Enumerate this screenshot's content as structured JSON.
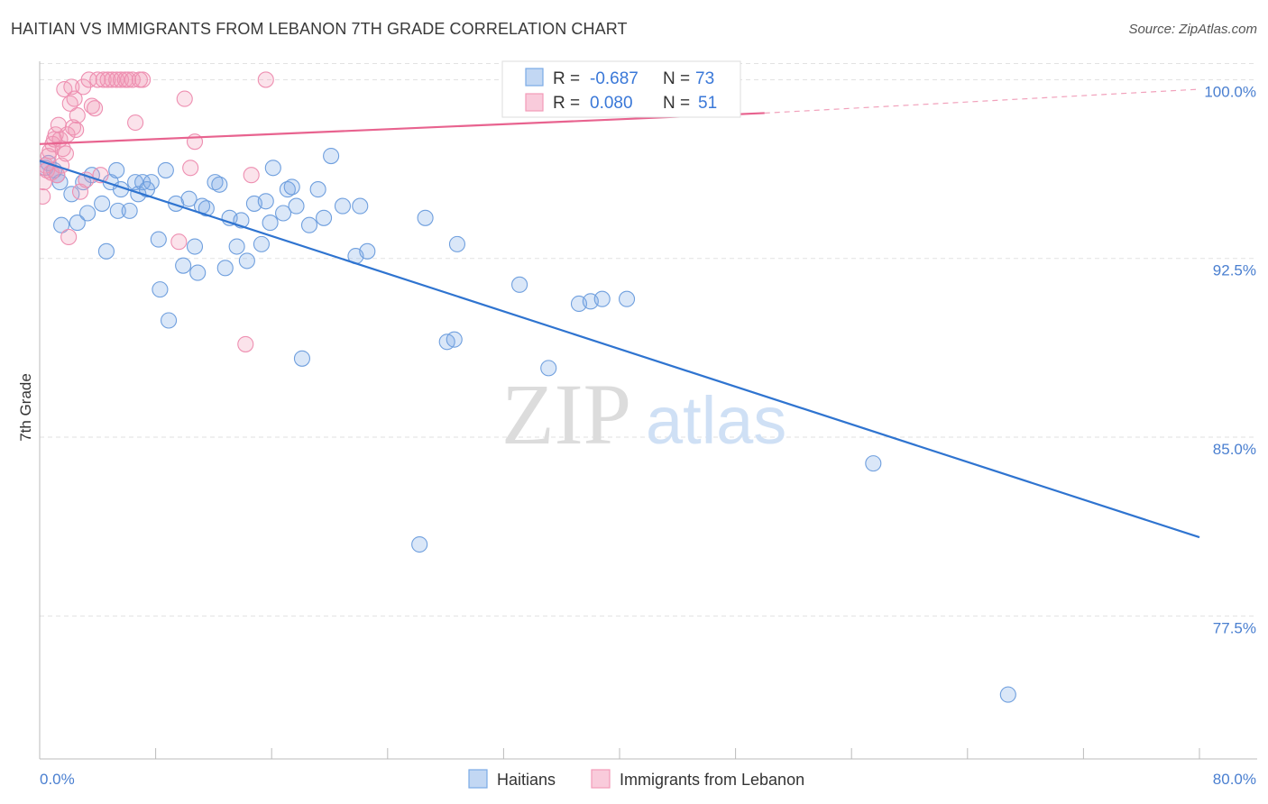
{
  "header": {
    "title": "HAITIAN VS IMMIGRANTS FROM LEBANON 7TH GRADE CORRELATION CHART",
    "source": "Source: ZipAtlas.com"
  },
  "watermark": {
    "zip": "ZIP",
    "atlas": "atlas"
  },
  "colors": {
    "blue": "#7aaae6",
    "blue_line": "#2f74d0",
    "pink": "#f29ab8",
    "pink_line": "#e8638f",
    "axis_text": "#4a7fd0",
    "grid": "#dddddd"
  },
  "chart_data": {
    "type": "scatter",
    "title": "HAITIAN VS IMMIGRANTS FROM LEBANON 7TH GRADE CORRELATION CHART",
    "xlabel": "",
    "ylabel": "7th Grade",
    "xlim": [
      0,
      80
    ],
    "ylim": [
      71.5,
      101.0
    ],
    "y_ticks": [
      77.5,
      85.0,
      92.5,
      100.0
    ],
    "y_tick_labels": [
      "77.5%",
      "85.0%",
      "92.5%",
      "100.0%"
    ],
    "x_tick_labels": [
      "0.0%",
      "80.0%"
    ],
    "grid": "horizontal dashed",
    "legend_position": "bottom-center",
    "stats": [
      {
        "series": "Haitians",
        "r_label": "R =",
        "r_value": "-0.687",
        "n_label": "N =",
        "n_value": "73"
      },
      {
        "series": "Immigrants from Lebanon",
        "r_label": "R =",
        "r_value": "0.080",
        "n_label": "N =",
        "n_value": "51"
      }
    ],
    "series": [
      {
        "name": "Haitians",
        "color": "#7aaae6",
        "trend": {
          "x": [
            0,
            80
          ],
          "y": [
            96.6,
            80.8
          ]
        },
        "points": [
          [
            0.4,
            96.3
          ],
          [
            0.6,
            96.5
          ],
          [
            1.0,
            96.2
          ],
          [
            1.2,
            96.0
          ],
          [
            1.4,
            95.7
          ],
          [
            1.5,
            93.9
          ],
          [
            2.2,
            95.2
          ],
          [
            2.6,
            94.0
          ],
          [
            3.0,
            95.7
          ],
          [
            3.3,
            94.4
          ],
          [
            3.6,
            96.0
          ],
          [
            4.3,
            94.8
          ],
          [
            4.6,
            92.8
          ],
          [
            4.9,
            95.7
          ],
          [
            5.3,
            96.2
          ],
          [
            5.4,
            94.5
          ],
          [
            5.6,
            95.4
          ],
          [
            6.2,
            94.5
          ],
          [
            6.6,
            95.7
          ],
          [
            6.8,
            95.2
          ],
          [
            7.1,
            95.7
          ],
          [
            7.4,
            95.4
          ],
          [
            7.7,
            95.7
          ],
          [
            8.2,
            93.3
          ],
          [
            8.3,
            91.2
          ],
          [
            8.7,
            96.2
          ],
          [
            8.9,
            89.9
          ],
          [
            9.4,
            94.8
          ],
          [
            9.9,
            92.2
          ],
          [
            10.3,
            95.0
          ],
          [
            10.7,
            93.0
          ],
          [
            10.9,
            91.9
          ],
          [
            11.2,
            94.7
          ],
          [
            11.5,
            94.6
          ],
          [
            12.1,
            95.7
          ],
          [
            12.4,
            95.6
          ],
          [
            12.8,
            92.1
          ],
          [
            13.1,
            94.2
          ],
          [
            13.6,
            93.0
          ],
          [
            13.9,
            94.1
          ],
          [
            14.3,
            92.4
          ],
          [
            14.8,
            94.8
          ],
          [
            15.3,
            93.1
          ],
          [
            15.6,
            94.9
          ],
          [
            15.9,
            94.0
          ],
          [
            16.1,
            96.3
          ],
          [
            16.8,
            94.4
          ],
          [
            17.1,
            95.4
          ],
          [
            17.4,
            95.5
          ],
          [
            17.7,
            94.7
          ],
          [
            18.1,
            88.3
          ],
          [
            18.6,
            93.9
          ],
          [
            19.2,
            95.4
          ],
          [
            19.6,
            94.2
          ],
          [
            20.1,
            96.8
          ],
          [
            20.9,
            94.7
          ],
          [
            21.8,
            92.6
          ],
          [
            22.1,
            94.7
          ],
          [
            22.6,
            92.8
          ],
          [
            26.2,
            80.5
          ],
          [
            26.6,
            94.2
          ],
          [
            28.1,
            89.0
          ],
          [
            28.6,
            89.1
          ],
          [
            28.8,
            93.1
          ],
          [
            32.6,
            100.0
          ],
          [
            33.1,
            91.4
          ],
          [
            35.1,
            87.9
          ],
          [
            37.2,
            90.6
          ],
          [
            38.0,
            90.7
          ],
          [
            38.8,
            90.8
          ],
          [
            40.5,
            90.8
          ],
          [
            57.5,
            83.9
          ],
          [
            66.8,
            74.2
          ]
        ]
      },
      {
        "name": "Immigrants from Lebanon",
        "color": "#f29ab8",
        "trend": {
          "x": [
            0,
            50
          ],
          "y": [
            97.3,
            98.6
          ]
        },
        "trend_ext": {
          "x": [
            50,
            80
          ],
          "y": [
            98.6,
            99.6
          ]
        },
        "points": [
          [
            0.2,
            95.1
          ],
          [
            0.3,
            95.7
          ],
          [
            0.4,
            96.4
          ],
          [
            0.5,
            96.2
          ],
          [
            0.6,
            96.8
          ],
          [
            0.7,
            97.0
          ],
          [
            0.8,
            96.1
          ],
          [
            0.9,
            97.3
          ],
          [
            1.0,
            97.5
          ],
          [
            1.1,
            97.7
          ],
          [
            1.2,
            96.0
          ],
          [
            1.3,
            98.1
          ],
          [
            1.4,
            97.5
          ],
          [
            1.5,
            96.4
          ],
          [
            1.6,
            97.1
          ],
          [
            1.7,
            99.6
          ],
          [
            1.8,
            96.9
          ],
          [
            1.9,
            97.7
          ],
          [
            2.0,
            93.4
          ],
          [
            2.1,
            99.0
          ],
          [
            2.2,
            99.7
          ],
          [
            2.3,
            98.0
          ],
          [
            2.4,
            99.2
          ],
          [
            2.5,
            97.9
          ],
          [
            2.6,
            98.5
          ],
          [
            2.8,
            95.3
          ],
          [
            3.0,
            99.7
          ],
          [
            3.2,
            95.8
          ],
          [
            3.4,
            100.0
          ],
          [
            3.6,
            98.9
          ],
          [
            3.8,
            98.8
          ],
          [
            4.0,
            100.0
          ],
          [
            4.2,
            96.0
          ],
          [
            4.4,
            100.0
          ],
          [
            4.7,
            100.0
          ],
          [
            5.0,
            100.0
          ],
          [
            5.3,
            100.0
          ],
          [
            5.6,
            100.0
          ],
          [
            5.9,
            100.0
          ],
          [
            6.1,
            100.0
          ],
          [
            6.4,
            100.0
          ],
          [
            6.6,
            98.2
          ],
          [
            6.9,
            100.0
          ],
          [
            7.1,
            100.0
          ],
          [
            9.6,
            93.2
          ],
          [
            10.0,
            99.2
          ],
          [
            10.4,
            96.3
          ],
          [
            10.7,
            97.4
          ],
          [
            14.2,
            88.9
          ],
          [
            14.6,
            96.0
          ],
          [
            15.6,
            100.0
          ]
        ]
      }
    ]
  }
}
